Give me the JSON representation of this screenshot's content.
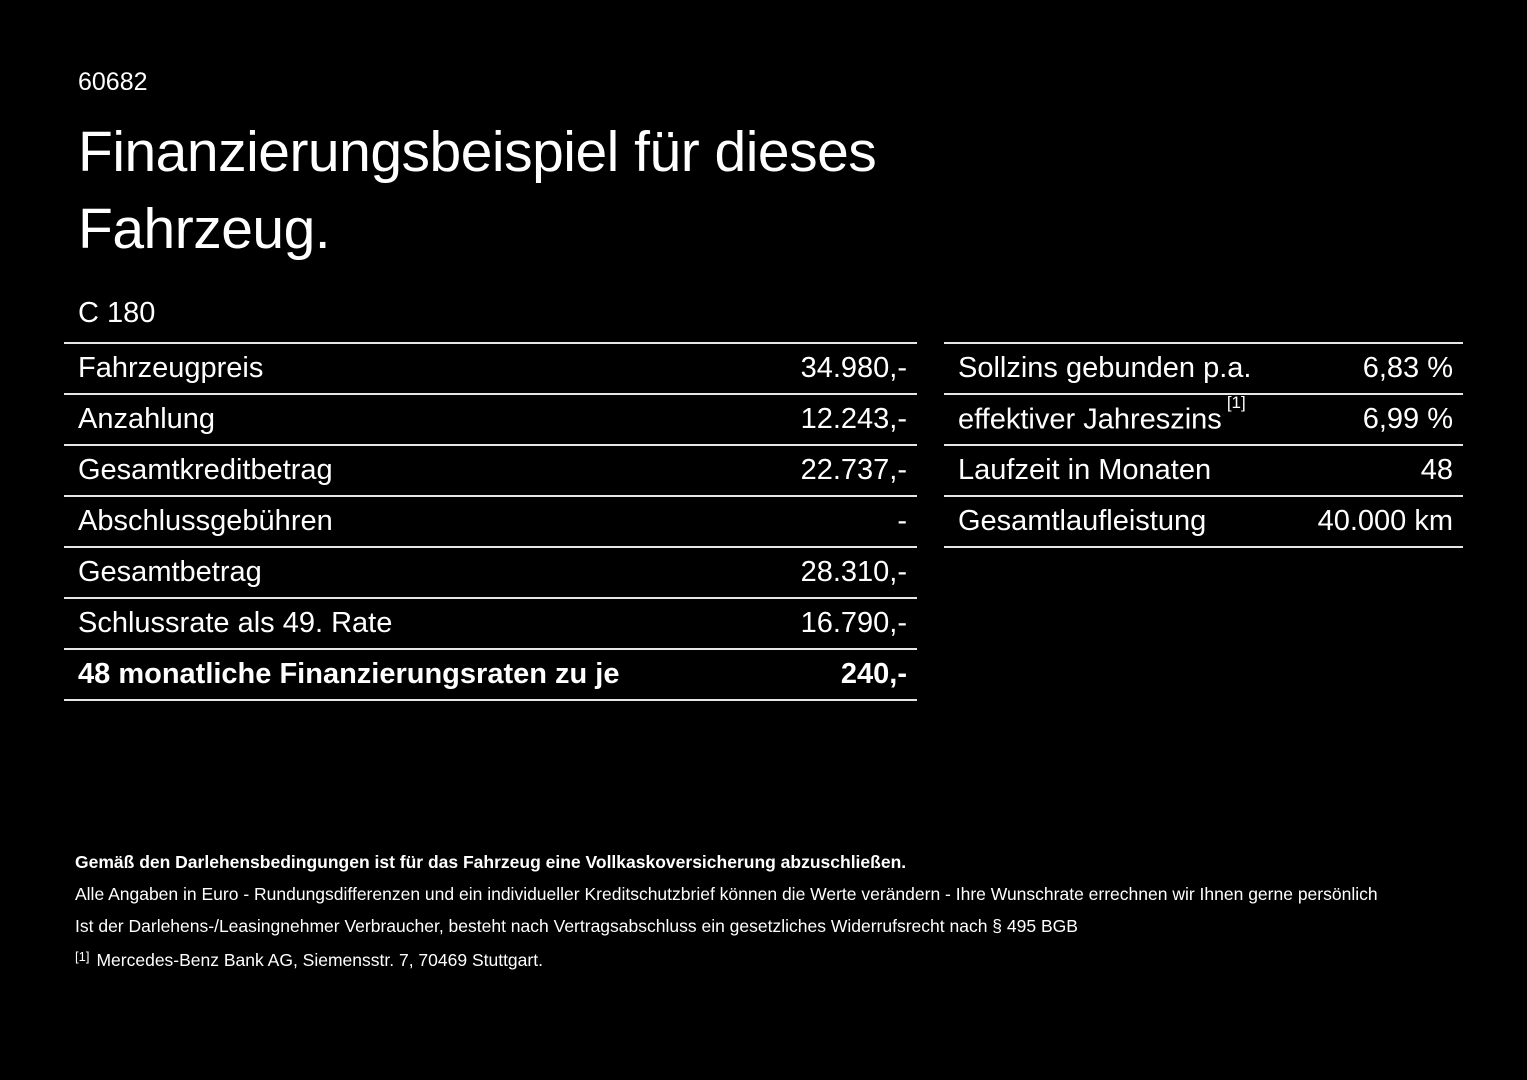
{
  "page": {
    "code": "60682",
    "title_line1": "Finanzierungsbeispiel für dieses",
    "title_line2": "Fahrzeug.",
    "model": "C 180"
  },
  "left_table": {
    "rows": [
      {
        "label": "Fahrzeugpreis",
        "value": "34.980,-"
      },
      {
        "label": "Anzahlung",
        "value": "12.243,-"
      },
      {
        "label": "Gesamtkreditbetrag",
        "value": "22.737,-"
      },
      {
        "label": "Abschlussgebühren",
        "value": "-"
      },
      {
        "label": "Gesamtbetrag",
        "value": "28.310,-"
      },
      {
        "label": "Schlussrate als 49. Rate",
        "value": "16.790,-"
      },
      {
        "label": "48 monatliche Finanzierungsraten zu je",
        "value": "240,-"
      }
    ]
  },
  "right_table": {
    "rows": [
      {
        "label": "Sollzins gebunden p.a.",
        "sup": "",
        "value": "6,83 %"
      },
      {
        "label": "effektiver Jahreszins",
        "sup": "[1]",
        "value": "6,99 %"
      },
      {
        "label": "Laufzeit in Monaten",
        "sup": "",
        "value": "48"
      },
      {
        "label": "Gesamtlaufleistung",
        "sup": "",
        "value": "40.000 km"
      }
    ]
  },
  "footer": {
    "bold_note": "Gemäß den Darlehensbedingungen ist für das Fahrzeug eine Vollkaskoversicherung abzuschließen.",
    "note1": "Alle Angaben in Euro - Rundungsdifferenzen und ein individueller Kreditschutzbrief können die Werte verändern - Ihre Wunschrate errechnen wir Ihnen gerne persönlich",
    "note2": "Ist der Darlehens-/Leasingnehmer Verbraucher, besteht nach Vertragsabschluss ein gesetzliches Widerrufsrecht nach § 495 BGB",
    "footnote_marker": "[1]",
    "footnote_text": "Mercedes-Benz Bank AG, Siemensstr. 7, 70469 Stuttgart."
  },
  "colors": {
    "background": "#000000",
    "text": "#ffffff",
    "divider": "#e6e6e6"
  }
}
